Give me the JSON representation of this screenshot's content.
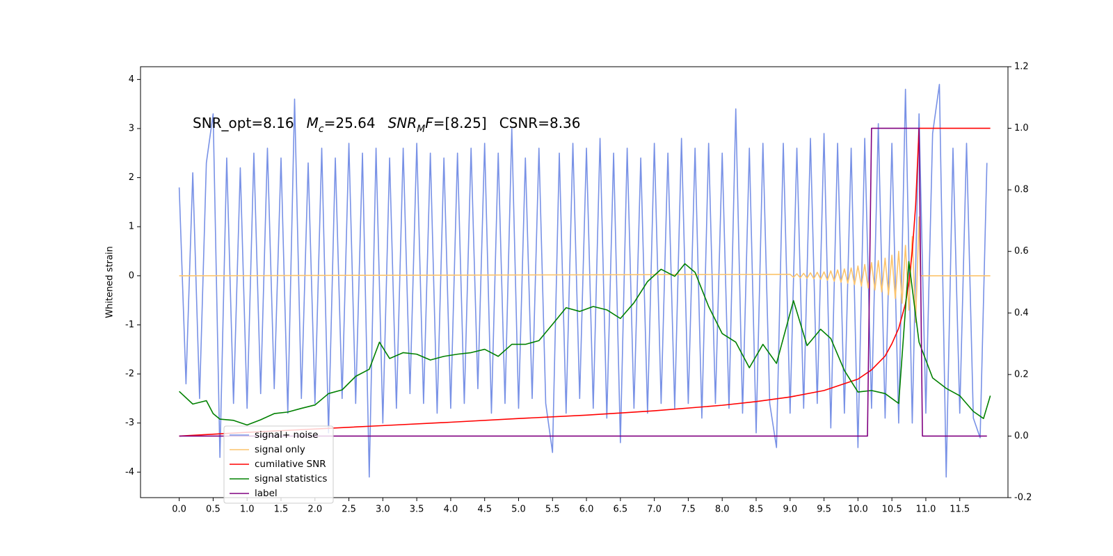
{
  "chart_data": {
    "type": "line",
    "ylabel": "Whitened strain",
    "annotation": [
      [
        {
          "text": "SNR_opt=8.16",
          "style": "normal"
        }
      ],
      [
        {
          "text": "M",
          "style": "italic"
        },
        {
          "text": "c",
          "style": "italic-sub"
        },
        {
          "text": "=25.64",
          "style": "normal"
        }
      ],
      [
        {
          "text": "SNR",
          "style": "italic"
        },
        {
          "text": "M",
          "style": "italic-sub"
        },
        {
          "text": "F",
          "style": "italic"
        },
        {
          "text": "=[8.25]",
          "style": "normal"
        }
      ],
      [
        {
          "text": "CSNR=8.36",
          "style": "normal"
        }
      ]
    ],
    "xlim": [
      -0.57,
      12.21
    ],
    "xticks": [
      {
        "value": 0,
        "label": "0.0"
      },
      0.5,
      {
        "value": 1,
        "label": "1.0"
      },
      1.5,
      {
        "value": 2,
        "label": "2.0"
      },
      2.5,
      {
        "value": 3,
        "label": "3.0"
      },
      3.5,
      {
        "value": 4,
        "label": "4.0"
      },
      4.5,
      {
        "value": 5,
        "label": "5.0"
      },
      5.5,
      {
        "value": 6,
        "label": "6.0"
      },
      6.5,
      {
        "value": 7,
        "label": "7.0"
      },
      7.5,
      {
        "value": 8,
        "label": "8.0"
      },
      8.5,
      {
        "value": 9,
        "label": "9.0"
      },
      9.5,
      {
        "value": 10,
        "label": "10.0"
      },
      10.5,
      {
        "value": 11,
        "label": "11.0"
      },
      11.5
    ],
    "ylim": [
      -4.52,
      4.26
    ],
    "yticks": [
      -4,
      -3,
      -2,
      -1,
      0,
      1,
      2,
      3,
      4
    ],
    "y2lim": [
      -0.2,
      1.2
    ],
    "y2ticks": [
      -0.2,
      {
        "value": 0,
        "label": "0.0"
      },
      0.2,
      0.4,
      0.6,
      0.8,
      {
        "value": 1,
        "label": "1.0"
      },
      1.2
    ],
    "legend_loc": "lower left",
    "series": [
      {
        "name": "signal+ noise",
        "color": "#7891e6",
        "x": [
          0.0,
          0.1,
          0.2,
          0.3,
          0.4,
          0.5,
          0.6,
          0.7,
          0.8,
          0.9,
          1.0,
          1.1,
          1.2,
          1.3,
          1.4,
          1.5,
          1.6,
          1.7,
          1.8,
          1.9,
          2.0,
          2.1,
          2.2,
          2.3,
          2.4,
          2.5,
          2.6,
          2.7,
          2.8,
          2.9,
          3.0,
          3.1,
          3.2,
          3.3,
          3.4,
          3.5,
          3.6,
          3.7,
          3.8,
          3.9,
          4.0,
          4.1,
          4.2,
          4.3,
          4.4,
          4.5,
          4.6,
          4.7,
          4.8,
          4.9,
          5.0,
          5.1,
          5.2,
          5.3,
          5.4,
          5.5,
          5.6,
          5.7,
          5.8,
          5.9,
          6.0,
          6.1,
          6.2,
          6.3,
          6.4,
          6.5,
          6.6,
          6.7,
          6.8,
          6.9,
          7.0,
          7.1,
          7.2,
          7.3,
          7.4,
          7.5,
          7.6,
          7.7,
          7.8,
          7.9,
          8.0,
          8.1,
          8.2,
          8.3,
          8.4,
          8.5,
          8.6,
          8.7,
          8.8,
          8.9,
          9.0,
          9.1,
          9.2,
          9.3,
          9.4,
          9.5,
          9.6,
          9.7,
          9.8,
          9.9,
          10.0,
          10.1,
          10.2,
          10.3,
          10.4,
          10.5,
          10.6,
          10.7,
          10.8,
          10.9,
          11.0,
          11.1,
          11.2,
          11.3,
          11.4,
          11.5,
          11.6,
          11.7,
          11.8,
          11.9
        ],
        "values": [
          1.8,
          -2.2,
          2.1,
          -2.5,
          2.3,
          3.3,
          -3.7,
          2.4,
          -2.6,
          2.2,
          -2.7,
          2.5,
          -2.4,
          2.6,
          -2.3,
          2.4,
          -2.8,
          3.6,
          -2.5,
          2.3,
          -2.6,
          2.6,
          -3.2,
          2.4,
          -2.5,
          2.7,
          -2.6,
          2.5,
          -4.1,
          2.6,
          -3.0,
          2.4,
          -2.7,
          2.6,
          -2.4,
          2.7,
          -2.6,
          2.5,
          -2.8,
          2.4,
          -2.7,
          2.5,
          -2.6,
          2.6,
          -2.3,
          2.7,
          -2.8,
          2.5,
          -2.6,
          3.0,
          -2.7,
          2.4,
          -2.5,
          2.6,
          -2.6,
          -3.6,
          2.5,
          -2.8,
          2.7,
          -2.5,
          2.6,
          -2.7,
          2.8,
          -2.9,
          2.5,
          -3.4,
          2.6,
          -2.7,
          2.4,
          -2.8,
          2.7,
          -2.6,
          2.5,
          -2.7,
          2.8,
          -2.6,
          2.6,
          -2.9,
          2.7,
          -2.6,
          2.5,
          -2.7,
          3.4,
          -2.8,
          2.6,
          -3.2,
          2.7,
          -2.6,
          -3.5,
          2.7,
          -2.8,
          2.6,
          -2.7,
          2.8,
          -2.6,
          2.9,
          -3.1,
          2.7,
          -2.8,
          2.6,
          -3.5,
          2.8,
          -2.7,
          3.1,
          -2.9,
          2.7,
          -3.0,
          3.8,
          -3.0,
          3.3,
          -2.8,
          2.9,
          3.9,
          -4.1,
          2.6,
          -2.8,
          2.7,
          -2.9,
          -3.3,
          2.3
        ]
      },
      {
        "name": "signal only",
        "color": "#fcc46c",
        "x": [
          0,
          9.0,
          9.05,
          9.1,
          9.15,
          9.2,
          9.25,
          9.3,
          9.35,
          9.4,
          9.45,
          9.5,
          9.55,
          9.6,
          9.65,
          9.7,
          9.75,
          9.8,
          9.85,
          9.9,
          9.95,
          10.0,
          10.05,
          10.1,
          10.15,
          10.2,
          10.25,
          10.3,
          10.35,
          10.4,
          10.45,
          10.5,
          10.55,
          10.6,
          10.65,
          10.7,
          10.75,
          10.8,
          10.85,
          10.9,
          10.92,
          11.95
        ],
        "values": [
          0,
          0.03,
          -0.03,
          0.04,
          -0.04,
          0.05,
          -0.05,
          0.06,
          -0.06,
          0.07,
          -0.07,
          0.08,
          -0.09,
          0.1,
          -0.11,
          0.12,
          -0.13,
          0.14,
          -0.15,
          0.16,
          -0.18,
          0.2,
          -0.21,
          0.23,
          -0.25,
          0.27,
          -0.29,
          0.31,
          -0.33,
          0.36,
          -0.39,
          0.42,
          -0.46,
          0.5,
          -0.56,
          0.62,
          -0.7,
          0.8,
          -0.95,
          1.2,
          0,
          0
        ]
      },
      {
        "name": "cumilative SNR",
        "color": "#ff0000",
        "axis": "y2",
        "x": [
          0,
          1,
          2,
          3,
          4,
          5,
          6,
          7,
          8,
          8.5,
          9,
          9.5,
          10,
          10.2,
          10.4,
          10.5,
          10.6,
          10.7,
          10.75,
          10.8,
          10.85,
          10.88,
          10.9,
          11.95
        ],
        "values": [
          0,
          0.012,
          0.023,
          0.034,
          0.045,
          0.057,
          0.068,
          0.082,
          0.1,
          0.112,
          0.127,
          0.148,
          0.185,
          0.215,
          0.26,
          0.3,
          0.35,
          0.43,
          0.5,
          0.6,
          0.75,
          0.9,
          1.0,
          1.0
        ]
      },
      {
        "name": "signal statistics",
        "color": "#008000",
        "axis": "y2",
        "x": [
          0,
          0.2,
          0.4,
          0.5,
          0.6,
          0.8,
          1.0,
          1.2,
          1.4,
          1.6,
          1.8,
          2.0,
          2.2,
          2.4,
          2.6,
          2.8,
          2.95,
          3.1,
          3.3,
          3.5,
          3.7,
          3.9,
          4.1,
          4.3,
          4.5,
          4.7,
          4.9,
          5.1,
          5.3,
          5.5,
          5.7,
          5.9,
          6.1,
          6.3,
          6.5,
          6.7,
          6.9,
          7.1,
          7.3,
          7.45,
          7.6,
          7.8,
          8.0,
          8.2,
          8.4,
          8.6,
          8.8,
          9.05,
          9.25,
          9.45,
          9.6,
          9.8,
          10.0,
          10.2,
          10.4,
          10.6,
          10.75,
          10.9,
          11.1,
          11.3,
          11.5,
          11.7,
          11.85,
          11.95
        ],
        "values": [
          0.145,
          0.104,
          0.115,
          0.073,
          0.055,
          0.051,
          0.036,
          0.053,
          0.073,
          0.078,
          0.09,
          0.101,
          0.138,
          0.15,
          0.194,
          0.217,
          0.305,
          0.252,
          0.271,
          0.266,
          0.247,
          0.259,
          0.266,
          0.271,
          0.282,
          0.259,
          0.298,
          0.298,
          0.31,
          0.363,
          0.417,
          0.405,
          0.421,
          0.41,
          0.382,
          0.433,
          0.502,
          0.542,
          0.519,
          0.56,
          0.532,
          0.421,
          0.333,
          0.305,
          0.222,
          0.298,
          0.236,
          0.44,
          0.294,
          0.347,
          0.317,
          0.213,
          0.143,
          0.148,
          0.138,
          0.106,
          0.567,
          0.305,
          0.189,
          0.155,
          0.131,
          0.08,
          0.057,
          0.131
        ]
      },
      {
        "name": "label",
        "color": "#800080",
        "axis": "y2",
        "x": [
          0,
          10.14,
          10.2,
          10.9,
          10.95,
          11.9
        ],
        "values": [
          0,
          0,
          1,
          1,
          0,
          0
        ]
      }
    ]
  }
}
